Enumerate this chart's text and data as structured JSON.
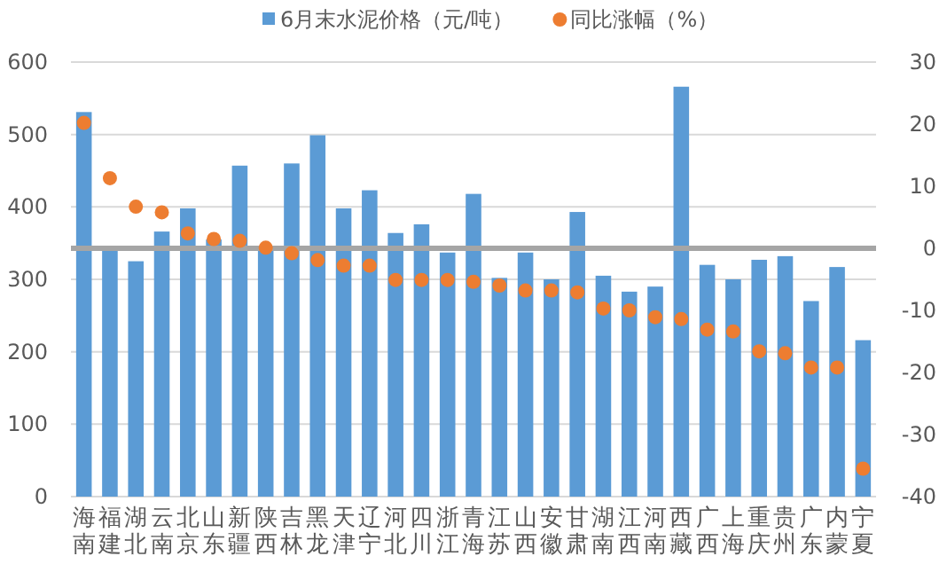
{
  "chart_data": {
    "type": "bar",
    "categories": [
      "海南",
      "福建",
      "湖北",
      "云南",
      "北京",
      "山东",
      "新疆",
      "陕西",
      "吉林",
      "黑龙",
      "天津",
      "辽宁",
      "河北",
      "四川",
      "浙江",
      "青海",
      "江苏",
      "山西",
      "安徽",
      "甘肃",
      "湖南",
      "江西",
      "河南",
      "西藏",
      "广西",
      "上海",
      "重庆",
      "贵州",
      "广东",
      "内蒙",
      "宁夏"
    ],
    "series": [
      {
        "name": "6月末水泥价格（元/吨）",
        "color": "#5b9bd5",
        "values": [
          531,
          345,
          325,
          366,
          398,
          355,
          457,
          340,
          460,
          499,
          398,
          423,
          364,
          376,
          337,
          418,
          302,
          337,
          300,
          393,
          305,
          283,
          290,
          566,
          320,
          300,
          327,
          332,
          270,
          317,
          216
        ]
      },
      {
        "name": "同比涨幅（%）",
        "type": "scatter",
        "axis": "y2",
        "color": "#ed7d31",
        "marker": "circle",
        "values": [
          20.2,
          11.3,
          6.7,
          5.8,
          2.4,
          1.5,
          1.2,
          0.1,
          -0.8,
          -1.9,
          -2.8,
          -2.8,
          -5.1,
          -5.1,
          -5.1,
          -5.4,
          -6.0,
          -6.8,
          -6.8,
          -7.1,
          -9.7,
          -10.0,
          -11.1,
          -11.4,
          -13.1,
          -13.4,
          -16.6,
          -16.9,
          -19.2,
          -19.2,
          -35.5
        ]
      }
    ],
    "ylim": [
      0,
      600
    ],
    "yticks": [
      0,
      100,
      200,
      300,
      400,
      500,
      600
    ],
    "y2lim": [
      -40,
      30
    ],
    "y2ticks": [
      -40,
      -30,
      -20,
      -10,
      0,
      10,
      20,
      30
    ],
    "grid": "y",
    "legend": "top",
    "ref_lines": [
      {
        "axis": "y2",
        "value": 0,
        "color": "#a5a5a5"
      }
    ]
  }
}
